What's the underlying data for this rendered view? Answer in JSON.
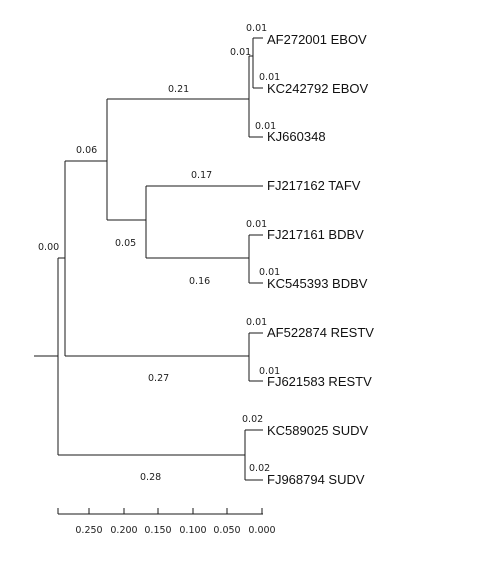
{
  "colors": {
    "line": "#1a1a1a",
    "text": "#111111",
    "root_branch_label": "#808080"
  },
  "tree": {
    "leaves": [
      "AF272001 EBOV",
      "KC242792 EBOV",
      "KJ660348",
      "FJ217162 TAFV",
      "FJ217161 BDBV",
      "KC545393 BDBV",
      "AF522874 RESTV",
      "FJ621583 RESTV",
      "KC589025 SUDV",
      "FJ968794 SUDV"
    ],
    "branch_lengths": {
      "ebov_clade_inner": "0.01",
      "af272001": "0.01",
      "kc242792": "0.01",
      "kj660348": "0.01",
      "ebov_clade": "0.21",
      "ebov_tafv_bdbv": "0.06",
      "tafv": "0.17",
      "tafv_bdbv": "0.05",
      "fj217161": "0.01",
      "kc545393": "0.01",
      "bdbv_clade": "0.16",
      "root_inner": "0.00",
      "af522874": "0.01",
      "fj621583": "0.01",
      "restv_clade": "0.27",
      "kc589025": "0.02",
      "fj968794": "0.02",
      "sudv_clade": "0.28"
    }
  },
  "scale_axis": {
    "ticks": [
      "0.250",
      "0.200",
      "0.150",
      "0.100",
      "0.050",
      "0.000"
    ]
  }
}
